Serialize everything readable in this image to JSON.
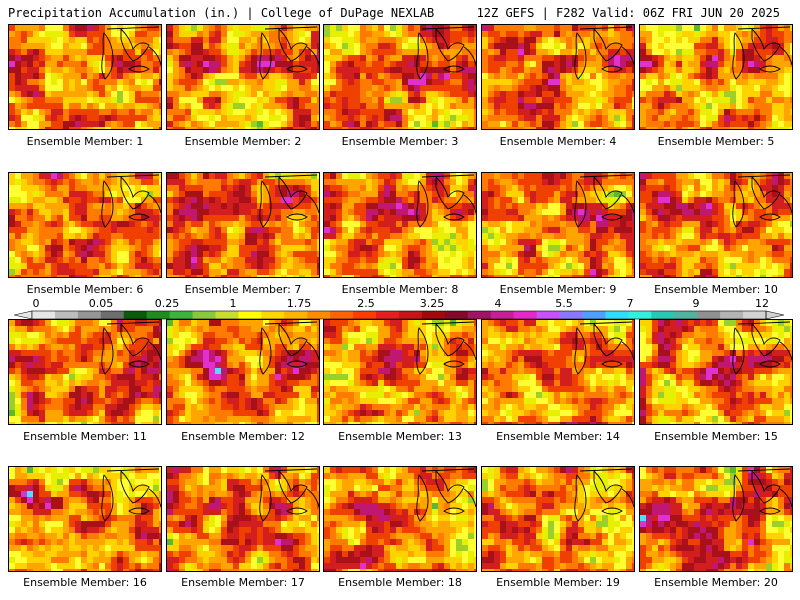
{
  "header": {
    "left_title": "Precipitation Accumulation (in.) | College of DuPage NEXLAB",
    "right_title": "12Z GEFS | F282 Valid: 06Z FRI JUN 20 2025"
  },
  "panels": [
    {
      "label": "Ensemble Member: 1"
    },
    {
      "label": "Ensemble Member: 2"
    },
    {
      "label": "Ensemble Member: 3"
    },
    {
      "label": "Ensemble Member: 4"
    },
    {
      "label": "Ensemble Member: 5"
    },
    {
      "label": "Ensemble Member: 6"
    },
    {
      "label": "Ensemble Member: 7"
    },
    {
      "label": "Ensemble Member: 8"
    },
    {
      "label": "Ensemble Member: 9"
    },
    {
      "label": "Ensemble Member: 10"
    },
    {
      "label": "Ensemble Member: 11"
    },
    {
      "label": "Ensemble Member: 12"
    },
    {
      "label": "Ensemble Member: 13"
    },
    {
      "label": "Ensemble Member: 14"
    },
    {
      "label": "Ensemble Member: 15"
    },
    {
      "label": "Ensemble Member: 16"
    },
    {
      "label": "Ensemble Member: 17"
    },
    {
      "label": "Ensemble Member: 18"
    },
    {
      "label": "Ensemble Member: 19"
    },
    {
      "label": "Ensemble Member: 20"
    }
  ],
  "colorbar": {
    "labels": [
      "0",
      "0.05",
      "0.25",
      "1",
      "1.75",
      "2.5",
      "3.25",
      "4",
      "5.5",
      "7",
      "9",
      "12"
    ],
    "colors": [
      "#e6e6e6",
      "#bdbdbd",
      "#969696",
      "#6e6e6e",
      "#0a5a0a",
      "#1e8c1e",
      "#3cb43c",
      "#8cc83c",
      "#c8dc32",
      "#ffff00",
      "#ffd700",
      "#ffb400",
      "#ff8c00",
      "#ff6400",
      "#ff3c00",
      "#e61e1e",
      "#c81414",
      "#a00a0a",
      "#820a28",
      "#a01464",
      "#c81e96",
      "#e628c8",
      "#c850ff",
      "#8c78ff",
      "#50a0ff",
      "#32dcff",
      "#32f0dc",
      "#28c8b4",
      "#50b4a0",
      "#909090",
      "#b4b4b4",
      "#d2d2d2"
    ]
  }
}
